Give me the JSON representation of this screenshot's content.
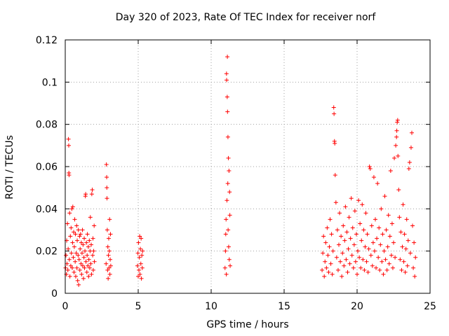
{
  "chart_data": {
    "type": "scatter",
    "title": "Day 320 of 2023, Rate Of TEC Index for receiver norf",
    "xlabel": "GPS time / hours",
    "ylabel": "ROTI / TECUs",
    "xlim": [
      0,
      25
    ],
    "ylim": [
      0,
      0.12
    ],
    "x_ticks": [
      "0",
      "5",
      "10",
      "15",
      "20",
      "25"
    ],
    "y_ticks": [
      "0",
      "0.02",
      "0.04",
      "0.06",
      "0.08",
      "0.1",
      "0.12"
    ],
    "grid": true,
    "marker": "+",
    "color": "#ff0000",
    "series": [
      {
        "points": [
          [
            0.02,
            0.012
          ],
          [
            0.05,
            0.018
          ],
          [
            0.08,
            0.009
          ],
          [
            0.1,
            0.025
          ],
          [
            0.12,
            0.014
          ],
          [
            0.15,
            0.033
          ],
          [
            0.18,
            0.011
          ],
          [
            0.2,
            0.021
          ],
          [
            0.22,
            0.073
          ],
          [
            0.24,
            0.07
          ],
          [
            0.25,
            0.057
          ],
          [
            0.26,
            0.056
          ],
          [
            0.28,
            0.016
          ],
          [
            0.3,
            0.038
          ],
          [
            0.32,
            0.008
          ],
          [
            0.35,
            0.027
          ],
          [
            0.38,
            0.013
          ],
          [
            0.4,
            0.031
          ],
          [
            0.42,
            0.019
          ],
          [
            0.45,
            0.04
          ],
          [
            0.48,
            0.012
          ],
          [
            0.5,
            0.024
          ],
          [
            0.52,
            0.041
          ],
          [
            0.55,
            0.017
          ],
          [
            0.58,
            0.029
          ],
          [
            0.6,
            0.01
          ],
          [
            0.62,
            0.022
          ],
          [
            0.65,
            0.035
          ],
          [
            0.68,
            0.015
          ],
          [
            0.7,
            0.028
          ],
          [
            0.72,
            0.008
          ],
          [
            0.75,
            0.019
          ],
          [
            0.78,
            0.032
          ],
          [
            0.8,
            0.012
          ],
          [
            0.82,
            0.025
          ],
          [
            0.85,
            0.006
          ],
          [
            0.88,
            0.018
          ],
          [
            0.9,
            0.03
          ],
          [
            0.92,
            0.004
          ],
          [
            0.95,
            0.016
          ],
          [
            0.98,
            0.027
          ],
          [
            1.0,
            0.011
          ],
          [
            1.02,
            0.021
          ],
          [
            1.05,
            0.028
          ],
          [
            1.08,
            0.014
          ],
          [
            1.1,
            0.024
          ],
          [
            1.12,
            0.009
          ],
          [
            1.15,
            0.019
          ],
          [
            1.18,
            0.03
          ],
          [
            1.2,
            0.013
          ],
          [
            1.22,
            0.023
          ],
          [
            1.25,
            0.007
          ],
          [
            1.28,
            0.017
          ],
          [
            1.3,
            0.026
          ],
          [
            1.32,
            0.012
          ],
          [
            1.35,
            0.02
          ],
          [
            1.38,
            0.046
          ],
          [
            1.4,
            0.047
          ],
          [
            1.42,
            0.015
          ],
          [
            1.45,
            0.024
          ],
          [
            1.48,
            0.01
          ],
          [
            1.5,
            0.018
          ],
          [
            1.52,
            0.028
          ],
          [
            1.55,
            0.013
          ],
          [
            1.58,
            0.022
          ],
          [
            1.6,
            0.008
          ],
          [
            1.62,
            0.016
          ],
          [
            1.65,
            0.025
          ],
          [
            1.68,
            0.012
          ],
          [
            1.7,
            0.02
          ],
          [
            1.72,
            0.036
          ],
          [
            1.75,
            0.014
          ],
          [
            1.78,
            0.023
          ],
          [
            1.8,
            0.009
          ],
          [
            1.82,
            0.047
          ],
          [
            1.85,
            0.049
          ],
          [
            1.88,
            0.018
          ],
          [
            1.9,
            0.026
          ],
          [
            1.92,
            0.011
          ],
          [
            1.95,
            0.02
          ],
          [
            1.98,
            0.032
          ],
          [
            2.0,
            0.015
          ],
          [
            2.8,
            0.014
          ],
          [
            2.82,
            0.061
          ],
          [
            2.84,
            0.055
          ],
          [
            2.85,
            0.05
          ],
          [
            2.86,
            0.045
          ],
          [
            2.88,
            0.03
          ],
          [
            2.9,
            0.011
          ],
          [
            2.92,
            0.022
          ],
          [
            2.94,
            0.007
          ],
          [
            2.96,
            0.018
          ],
          [
            2.98,
            0.026
          ],
          [
            3.0,
            0.012
          ],
          [
            3.02,
            0.02
          ],
          [
            3.04,
            0.035
          ],
          [
            3.06,
            0.009
          ],
          [
            3.08,
            0.016
          ],
          [
            3.1,
            0.028
          ],
          [
            3.12,
            0.013
          ],
          [
            4.95,
            0.013
          ],
          [
            4.98,
            0.019
          ],
          [
            5.0,
            0.008
          ],
          [
            5.02,
            0.024
          ],
          [
            5.05,
            0.011
          ],
          [
            5.08,
            0.017
          ],
          [
            5.1,
            0.027
          ],
          [
            5.12,
            0.009
          ],
          [
            5.15,
            0.021
          ],
          [
            5.18,
            0.014
          ],
          [
            5.2,
            0.026
          ],
          [
            5.22,
            0.007
          ],
          [
            5.25,
            0.018
          ],
          [
            5.28,
            0.012
          ],
          [
            5.3,
            0.02
          ],
          [
            10.95,
            0.012
          ],
          [
            10.98,
            0.02
          ],
          [
            11.0,
            0.028
          ],
          [
            11.02,
            0.035
          ],
          [
            11.04,
            0.009
          ],
          [
            11.05,
            0.104
          ],
          [
            11.06,
            0.101
          ],
          [
            11.08,
            0.044
          ],
          [
            11.1,
            0.093
          ],
          [
            11.11,
            0.112
          ],
          [
            11.12,
            0.086
          ],
          [
            11.14,
            0.052
          ],
          [
            11.15,
            0.074
          ],
          [
            11.16,
            0.03
          ],
          [
            11.18,
            0.064
          ],
          [
            11.2,
            0.022
          ],
          [
            11.22,
            0.058
          ],
          [
            11.24,
            0.016
          ],
          [
            11.26,
            0.048
          ],
          [
            11.28,
            0.037
          ],
          [
            11.3,
            0.013
          ],
          [
            17.6,
            0.011
          ],
          [
            17.65,
            0.019
          ],
          [
            17.7,
            0.027
          ],
          [
            17.75,
            0.008
          ],
          [
            17.8,
            0.015
          ],
          [
            17.85,
            0.024
          ],
          [
            17.9,
            0.012
          ],
          [
            17.95,
            0.031
          ],
          [
            18.0,
            0.018
          ],
          [
            18.05,
            0.01
          ],
          [
            18.1,
            0.022
          ],
          [
            18.15,
            0.035
          ],
          [
            18.2,
            0.014
          ],
          [
            18.25,
            0.028
          ],
          [
            18.3,
            0.009
          ],
          [
            18.35,
            0.02
          ],
          [
            18.4,
            0.088
          ],
          [
            18.42,
            0.085
          ],
          [
            18.45,
            0.072
          ],
          [
            18.47,
            0.071
          ],
          [
            18.5,
            0.056
          ],
          [
            18.55,
            0.043
          ],
          [
            18.6,
            0.017
          ],
          [
            18.65,
            0.03
          ],
          [
            18.7,
            0.011
          ],
          [
            18.75,
            0.023
          ],
          [
            18.8,
            0.038
          ],
          [
            18.85,
            0.015
          ],
          [
            18.9,
            0.027
          ],
          [
            18.95,
            0.008
          ],
          [
            19.0,
            0.019
          ],
          [
            19.05,
            0.032
          ],
          [
            19.1,
            0.013
          ],
          [
            19.15,
            0.025
          ],
          [
            19.2,
            0.041
          ],
          [
            19.25,
            0.016
          ],
          [
            19.3,
            0.029
          ],
          [
            19.35,
            0.01
          ],
          [
            19.4,
            0.021
          ],
          [
            19.45,
            0.036
          ],
          [
            19.5,
            0.014
          ],
          [
            19.55,
            0.026
          ],
          [
            19.6,
            0.045
          ],
          [
            19.65,
            0.018
          ],
          [
            19.7,
            0.031
          ],
          [
            19.75,
            0.012
          ],
          [
            19.8,
            0.023
          ],
          [
            19.85,
            0.039
          ],
          [
            19.9,
            0.015
          ],
          [
            19.95,
            0.028
          ],
          [
            20.0,
            0.009
          ],
          [
            20.05,
            0.02
          ],
          [
            20.1,
            0.044
          ],
          [
            20.15,
            0.017
          ],
          [
            20.2,
            0.033
          ],
          [
            20.25,
            0.012
          ],
          [
            20.3,
            0.025
          ],
          [
            20.35,
            0.042
          ],
          [
            20.4,
            0.016
          ],
          [
            20.45,
            0.03
          ],
          [
            20.5,
            0.011
          ],
          [
            20.55,
            0.022
          ],
          [
            20.6,
            0.038
          ],
          [
            20.65,
            0.015
          ],
          [
            20.7,
            0.028
          ],
          [
            20.75,
            0.01
          ],
          [
            20.8,
            0.021
          ],
          [
            20.85,
            0.06
          ],
          [
            20.9,
            0.059
          ],
          [
            20.95,
            0.018
          ],
          [
            21.0,
            0.032
          ],
          [
            21.05,
            0.013
          ],
          [
            21.1,
            0.024
          ],
          [
            21.15,
            0.055
          ],
          [
            21.2,
            0.02
          ],
          [
            21.25,
            0.035
          ],
          [
            21.3,
            0.012
          ],
          [
            21.35,
            0.026
          ],
          [
            21.4,
            0.052
          ],
          [
            21.45,
            0.017
          ],
          [
            21.5,
            0.031
          ],
          [
            21.55,
            0.011
          ],
          [
            21.6,
            0.023
          ],
          [
            21.65,
            0.04
          ],
          [
            21.7,
            0.015
          ],
          [
            21.75,
            0.028
          ],
          [
            21.8,
            0.009
          ],
          [
            21.85,
            0.02
          ],
          [
            21.9,
            0.046
          ],
          [
            21.95,
            0.016
          ],
          [
            22.0,
            0.03
          ],
          [
            22.05,
            0.011
          ],
          [
            22.1,
            0.022
          ],
          [
            22.15,
            0.037
          ],
          [
            22.2,
            0.014
          ],
          [
            22.25,
            0.027
          ],
          [
            22.3,
            0.058
          ],
          [
            22.35,
            0.018
          ],
          [
            22.4,
            0.033
          ],
          [
            22.45,
            0.012
          ],
          [
            22.5,
            0.024
          ],
          [
            22.55,
            0.064
          ],
          [
            22.6,
            0.017
          ],
          [
            22.65,
            0.07
          ],
          [
            22.7,
            0.074
          ],
          [
            22.72,
            0.077
          ],
          [
            22.75,
            0.081
          ],
          [
            22.78,
            0.082
          ],
          [
            22.8,
            0.065
          ],
          [
            22.85,
            0.049
          ],
          [
            22.9,
            0.036
          ],
          [
            22.95,
            0.016
          ],
          [
            23.0,
            0.029
          ],
          [
            23.05,
            0.011
          ],
          [
            23.1,
            0.022
          ],
          [
            23.15,
            0.042
          ],
          [
            23.2,
            0.015
          ],
          [
            23.25,
            0.028
          ],
          [
            23.3,
            0.01
          ],
          [
            23.35,
            0.021
          ],
          [
            23.4,
            0.035
          ],
          [
            23.45,
            0.013
          ],
          [
            23.5,
            0.025
          ],
          [
            23.55,
            0.059
          ],
          [
            23.6,
            0.062
          ],
          [
            23.65,
            0.019
          ],
          [
            23.7,
            0.069
          ],
          [
            23.75,
            0.076
          ],
          [
            23.8,
            0.032
          ],
          [
            23.85,
            0.012
          ],
          [
            23.9,
            0.024
          ],
          [
            23.95,
            0.008
          ],
          [
            24.0,
            0.017
          ]
        ]
      }
    ]
  }
}
